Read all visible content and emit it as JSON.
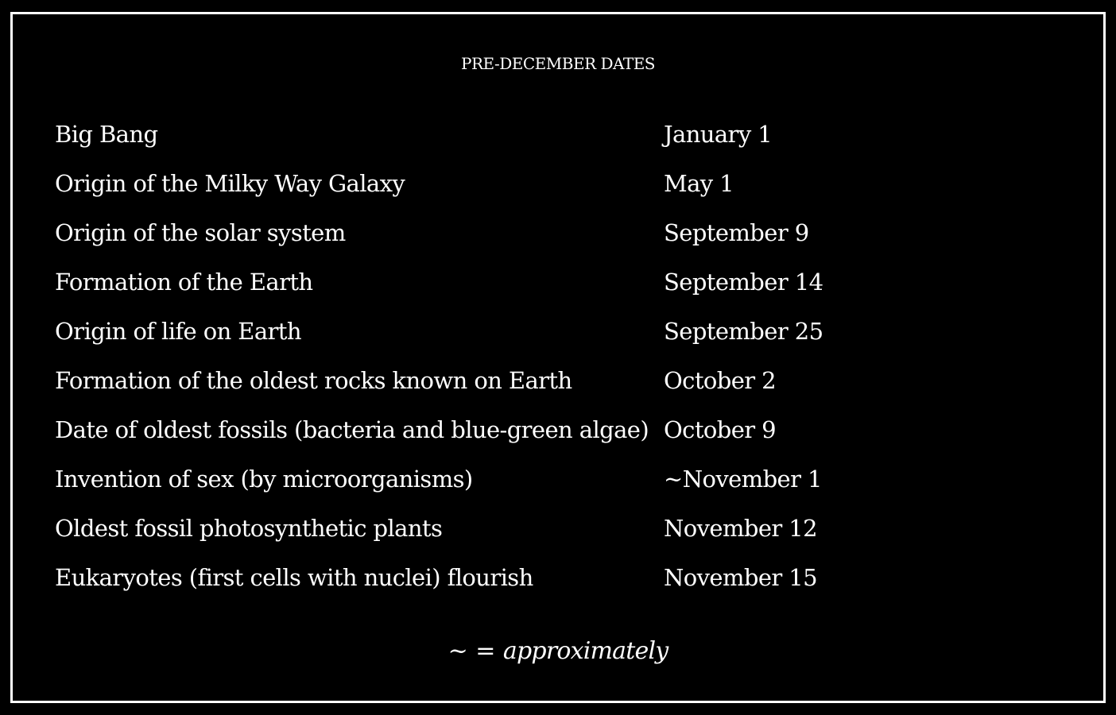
{
  "title": "PRE-DECEMBER DATES",
  "rows": [
    {
      "event": "Big Bang",
      "date": "January 1"
    },
    {
      "event": "Origin of the Milky Way Galaxy",
      "date": "May 1"
    },
    {
      "event": "Origin of the solar system",
      "date": "September 9"
    },
    {
      "event": "Formation of the Earth",
      "date": "September 14"
    },
    {
      "event": "Origin of life on Earth",
      "date": "September 25"
    },
    {
      "event": "Formation of the oldest rocks known on Earth",
      "date": "October 2"
    },
    {
      "event": "Date of oldest fossils (bacteria and blue-green algae)",
      "date": "October 9"
    },
    {
      "event": "Invention of sex (by microorganisms)",
      "date": "~November 1"
    },
    {
      "event": "Oldest fossil photosynthetic plants",
      "date": "November 12"
    },
    {
      "event": "Eukaryotes (first cells with nuclei) flourish",
      "date": "November 15"
    }
  ],
  "footnote": {
    "symbol": "~ =",
    "meaning": "approximately"
  }
}
